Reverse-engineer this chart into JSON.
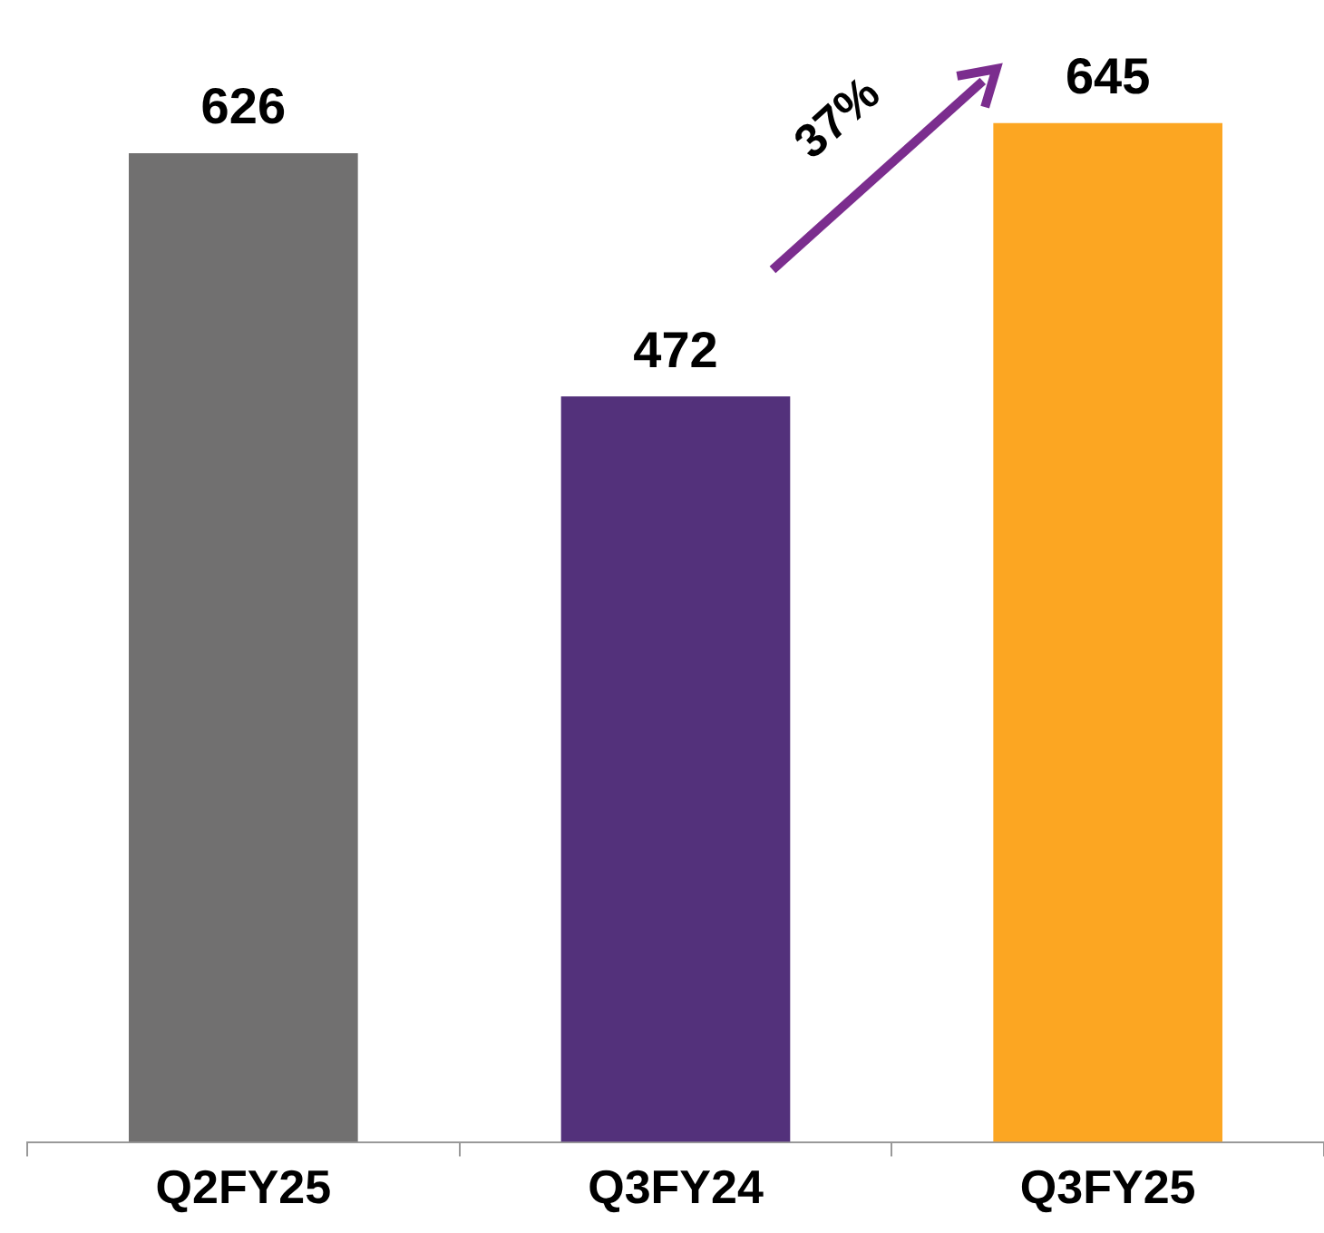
{
  "chart_data": {
    "type": "bar",
    "categories": [
      "Q2FY25",
      "Q3FY24",
      "Q3FY25"
    ],
    "values": [
      626,
      472,
      645
    ],
    "colors": [
      "#717070",
      "#53317b",
      "#fca622"
    ],
    "data_labels": true,
    "annotations": [
      "37%"
    ]
  }
}
